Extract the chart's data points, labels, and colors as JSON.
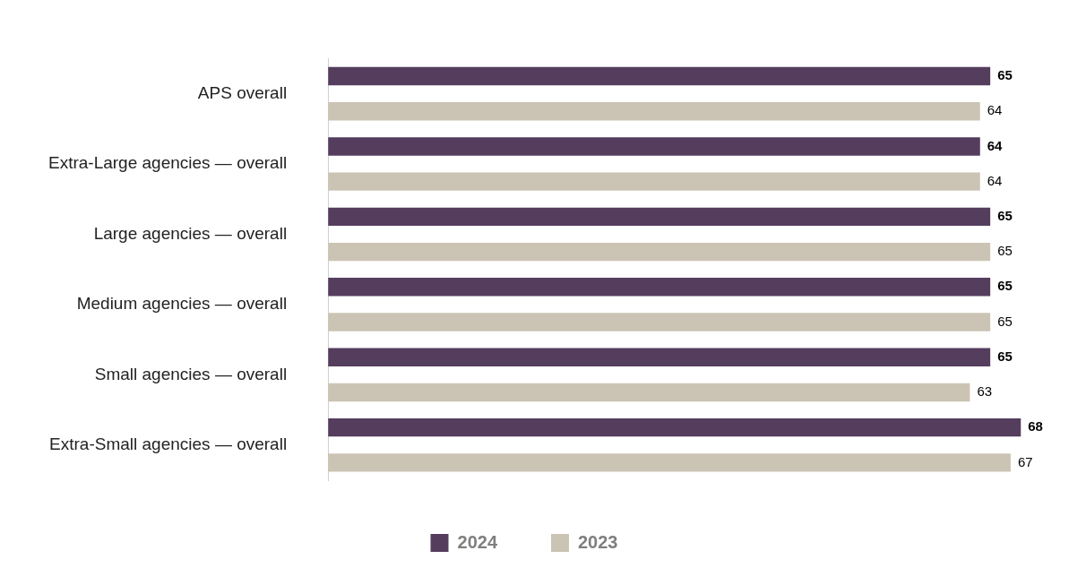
{
  "chart_data": {
    "type": "bar",
    "orientation": "horizontal",
    "categories": [
      "APS overall",
      "Extra-Large agencies — overall",
      "Large agencies — overall",
      "Medium agencies — overall",
      "Small agencies — overall",
      "Extra-Small agencies — overall"
    ],
    "series": [
      {
        "name": "2024",
        "color": "#553d5e",
        "values": [
          65,
          64,
          65,
          65,
          65,
          68
        ]
      },
      {
        "name": "2023",
        "color": "#cbc4b4",
        "values": [
          64,
          64,
          65,
          65,
          63,
          67
        ]
      }
    ],
    "data_labels": true,
    "legend": "bottom",
    "grid": false,
    "tick_labels": "y"
  }
}
